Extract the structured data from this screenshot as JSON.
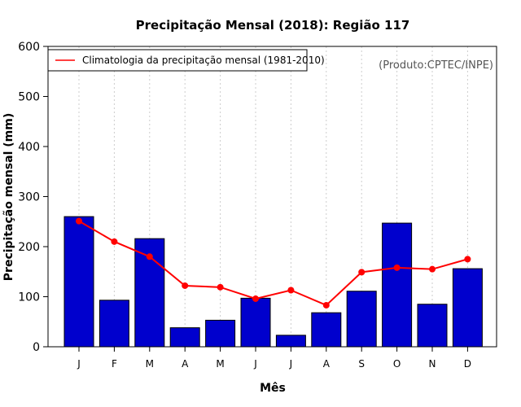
{
  "chart_data": {
    "type": "bar",
    "title": "Precipitação Mensal (2018): Região 117",
    "xlabel": "Mês",
    "ylabel": "Precipitação mensal (mm)",
    "ylim": [
      0,
      600
    ],
    "yticks": [
      0,
      100,
      200,
      300,
      400,
      500,
      600
    ],
    "categories": [
      "J",
      "F",
      "M",
      "A",
      "M",
      "J",
      "J",
      "A",
      "S",
      "O",
      "N",
      "D"
    ],
    "bar_color": "#0000CD",
    "values": [
      260,
      93,
      216,
      38,
      53,
      97,
      23,
      68,
      111,
      247,
      85,
      156
    ],
    "line_series": {
      "name": "Climatologia da precipitação mensal (1981-2010)",
      "color": "#FF0000",
      "values": [
        251,
        210,
        180,
        122,
        119,
        96,
        113,
        83,
        149,
        158,
        155,
        175
      ]
    },
    "legend_position": "top-left",
    "annotation": "(Produto:CPTEC/INPE)",
    "grid": "vertical-dashed"
  }
}
